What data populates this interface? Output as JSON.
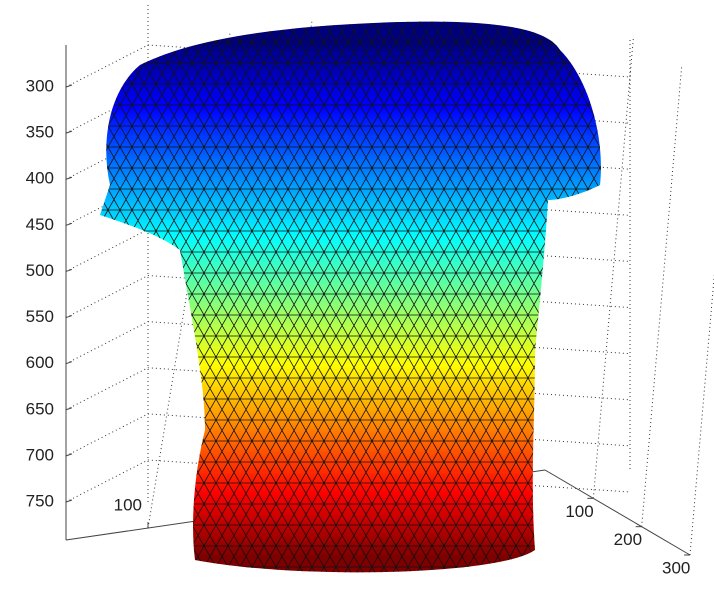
{
  "chart_data": {
    "type": "mesh3d",
    "zlim": [
      300,
      750
    ],
    "zticks": [
      300,
      350,
      400,
      450,
      500,
      550,
      600,
      650,
      700,
      750
    ],
    "xticks": [
      100,
      200
    ],
    "yticks": [
      100,
      200,
      300
    ],
    "grid": true,
    "colormap": [
      "#00007f",
      "#0000ff",
      "#0080ff",
      "#00ffff",
      "#80ff80",
      "#ffff00",
      "#ff8000",
      "#ff0000",
      "#7f0000"
    ]
  }
}
